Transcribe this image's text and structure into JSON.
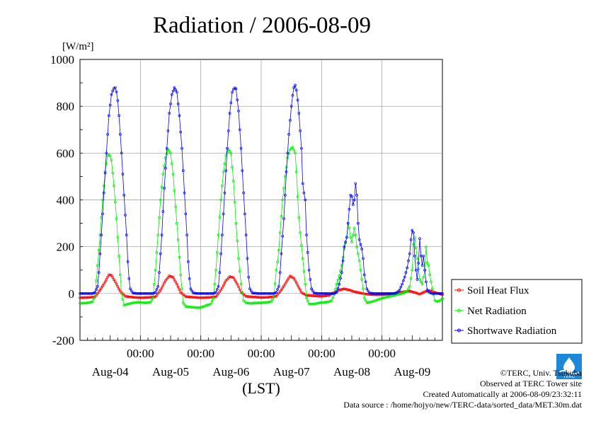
{
  "chart_data": {
    "type": "line",
    "title": "Radiation / 2006-08-09",
    "ylabel": "[W/m²]",
    "xlabel": "(LST)",
    "ylim": [
      -200,
      1000
    ],
    "yticks": [
      -200,
      0,
      200,
      400,
      600,
      800,
      1000
    ],
    "xlim_hours": [
      0,
      144
    ],
    "time_ticks": [
      "00:00",
      "00:00",
      "00:00",
      "00:00",
      "00:00"
    ],
    "day_labels": [
      "Aug-04",
      "Aug-05",
      "Aug-06",
      "Aug-07",
      "Aug-08",
      "Aug-09"
    ],
    "grid": true,
    "legend_position": "bottom-right",
    "series": [
      {
        "name": "Soil Heat Flux",
        "color": "#ff0000",
        "points": [
          [
            0,
            -18
          ],
          [
            3,
            -17
          ],
          [
            6,
            -15
          ],
          [
            8,
            15
          ],
          [
            10,
            50
          ],
          [
            11.5,
            80
          ],
          [
            12.5,
            78
          ],
          [
            14,
            50
          ],
          [
            16,
            10
          ],
          [
            18,
            -12
          ],
          [
            21,
            -16
          ],
          [
            24,
            -18
          ],
          [
            27,
            -17
          ],
          [
            30,
            -14
          ],
          [
            32,
            15
          ],
          [
            34,
            55
          ],
          [
            35.5,
            75
          ],
          [
            37,
            70
          ],
          [
            38.5,
            40
          ],
          [
            40,
            5
          ],
          [
            42,
            -13
          ],
          [
            45,
            -16
          ],
          [
            48,
            -18
          ],
          [
            51,
            -17
          ],
          [
            54,
            -14
          ],
          [
            56,
            15
          ],
          [
            58,
            55
          ],
          [
            59.5,
            72
          ],
          [
            61,
            68
          ],
          [
            62.5,
            40
          ],
          [
            64,
            5
          ],
          [
            66,
            -12
          ],
          [
            69,
            -15
          ],
          [
            72,
            -17
          ],
          [
            75,
            -16
          ],
          [
            78,
            -12
          ],
          [
            80,
            15
          ],
          [
            82,
            50
          ],
          [
            83.5,
            75
          ],
          [
            85,
            65
          ],
          [
            86.5,
            35
          ],
          [
            88,
            5
          ],
          [
            90,
            -8
          ],
          [
            93,
            -10
          ],
          [
            96,
            -12
          ],
          [
            99,
            -8
          ],
          [
            101,
            5
          ],
          [
            103,
            15
          ],
          [
            105,
            20
          ],
          [
            107,
            15
          ],
          [
            109,
            8
          ],
          [
            111,
            3
          ],
          [
            114,
            -3
          ],
          [
            117,
            -5
          ],
          [
            120,
            -5
          ],
          [
            123,
            -2
          ],
          [
            126,
            2
          ],
          [
            129,
            8
          ],
          [
            131,
            10
          ],
          [
            133,
            5
          ],
          [
            135,
            -3
          ],
          [
            137,
            8
          ],
          [
            139,
            12
          ],
          [
            141,
            5
          ],
          [
            144,
            -5
          ]
        ]
      },
      {
        "name": "Net Radiation",
        "color": "#00ee00",
        "points": [
          [
            0,
            -42
          ],
          [
            3,
            -40
          ],
          [
            5,
            -35
          ],
          [
            6,
            -10
          ],
          [
            7,
            120
          ],
          [
            8,
            250
          ],
          [
            9,
            400
          ],
          [
            10,
            520
          ],
          [
            11,
            590
          ],
          [
            11.8,
            595
          ],
          [
            12.5,
            570
          ],
          [
            13.5,
            460
          ],
          [
            14.5,
            320
          ],
          [
            15.5,
            160
          ],
          [
            16.5,
            0
          ],
          [
            17.5,
            -50
          ],
          [
            19,
            -45
          ],
          [
            21,
            -40
          ],
          [
            23,
            -37
          ],
          [
            24,
            -38
          ],
          [
            26,
            -40
          ],
          [
            28,
            -38
          ],
          [
            29,
            -20
          ],
          [
            30,
            100
          ],
          [
            31,
            250
          ],
          [
            32,
            400
          ],
          [
            33,
            510
          ],
          [
            34,
            580
          ],
          [
            35,
            615
          ],
          [
            36,
            600
          ],
          [
            37,
            510
          ],
          [
            38,
            370
          ],
          [
            39,
            230
          ],
          [
            40,
            80
          ],
          [
            41,
            -40
          ],
          [
            42,
            -55
          ],
          [
            44,
            -58
          ],
          [
            46,
            -60
          ],
          [
            48,
            -60
          ],
          [
            50,
            -52
          ],
          [
            52,
            -45
          ],
          [
            53,
            -20
          ],
          [
            54,
            100
          ],
          [
            55,
            250
          ],
          [
            56,
            400
          ],
          [
            57,
            520
          ],
          [
            58,
            590
          ],
          [
            59,
            615
          ],
          [
            60,
            600
          ],
          [
            61,
            480
          ],
          [
            62,
            300
          ],
          [
            63,
            150
          ],
          [
            64,
            40
          ],
          [
            65,
            -30
          ],
          [
            66,
            -40
          ],
          [
            68,
            -42
          ],
          [
            70,
            -40
          ],
          [
            72,
            -40
          ],
          [
            74,
            -38
          ],
          [
            76,
            -35
          ],
          [
            77,
            -15
          ],
          [
            78,
            100
          ],
          [
            78.8,
            155
          ],
          [
            79.5,
            260
          ],
          [
            80.5,
            400
          ],
          [
            81.5,
            500
          ],
          [
            82.5,
            580
          ],
          [
            83.5,
            615
          ],
          [
            84.5,
            625
          ],
          [
            85.5,
            600
          ],
          [
            86,
            520
          ],
          [
            86.8,
            350
          ],
          [
            87.5,
            260
          ],
          [
            88.5,
            150
          ],
          [
            89.5,
            40
          ],
          [
            90,
            -20
          ],
          [
            91,
            -45
          ],
          [
            93,
            -45
          ],
          [
            95,
            -40
          ],
          [
            97,
            -38
          ],
          [
            99,
            -35
          ],
          [
            100,
            -30
          ],
          [
            101,
            -5
          ],
          [
            102,
            40
          ],
          [
            103,
            75
          ],
          [
            104,
            120
          ],
          [
            105,
            190
          ],
          [
            106,
            240
          ],
          [
            106.5,
            300
          ],
          [
            107,
            280
          ],
          [
            107.5,
            240
          ],
          [
            108,
            220
          ],
          [
            109,
            280
          ],
          [
            109.5,
            250
          ],
          [
            110,
            200
          ],
          [
            111,
            140
          ],
          [
            112,
            60
          ],
          [
            113,
            -20
          ],
          [
            114,
            -40
          ],
          [
            116,
            -35
          ],
          [
            118,
            -28
          ],
          [
            120,
            -20
          ],
          [
            122,
            -15
          ],
          [
            124,
            -10
          ],
          [
            126,
            -5
          ],
          [
            128,
            0
          ],
          [
            130,
            10
          ],
          [
            131,
            30
          ],
          [
            132,
            100
          ],
          [
            132.5,
            210
          ],
          [
            133,
            240
          ],
          [
            134,
            150
          ],
          [
            135,
            60
          ],
          [
            136,
            40
          ],
          [
            137,
            100
          ],
          [
            137.5,
            200
          ],
          [
            138,
            130
          ],
          [
            138.5,
            120
          ],
          [
            139,
            80
          ],
          [
            140,
            20
          ],
          [
            141,
            -30
          ],
          [
            142,
            -35
          ],
          [
            143,
            -30
          ],
          [
            144,
            -22
          ]
        ]
      },
      {
        "name": "Shortwave Radiation",
        "color": "#0000ff",
        "points": [
          [
            0,
            0
          ],
          [
            5,
            0
          ],
          [
            6,
            5
          ],
          [
            7,
            30
          ],
          [
            7.5,
            90
          ],
          [
            8.5,
            250
          ],
          [
            9.5,
            430
          ],
          [
            10.5,
            600
          ],
          [
            11.5,
            760
          ],
          [
            12.5,
            850
          ],
          [
            13.3,
            875
          ],
          [
            14,
            880
          ],
          [
            14.8,
            850
          ],
          [
            15.5,
            760
          ],
          [
            16.5,
            600
          ],
          [
            17.5,
            420
          ],
          [
            18.5,
            250
          ],
          [
            19.2,
            90
          ],
          [
            20,
            20
          ],
          [
            21,
            2
          ],
          [
            23,
            0
          ],
          [
            29,
            0
          ],
          [
            30,
            5
          ],
          [
            31,
            30
          ],
          [
            31.5,
            90
          ],
          [
            32.5,
            250
          ],
          [
            33.5,
            450
          ],
          [
            34.5,
            620
          ],
          [
            35.5,
            770
          ],
          [
            36.5,
            850
          ],
          [
            37.5,
            880
          ],
          [
            38.5,
            860
          ],
          [
            39.5,
            760
          ],
          [
            40.5,
            620
          ],
          [
            41.5,
            430
          ],
          [
            42.5,
            250
          ],
          [
            43.2,
            90
          ],
          [
            44,
            20
          ],
          [
            45,
            2
          ],
          [
            47,
            0
          ],
          [
            53,
            0
          ],
          [
            54,
            5
          ],
          [
            55,
            30
          ],
          [
            55.5,
            90
          ],
          [
            56.5,
            250
          ],
          [
            57.5,
            430
          ],
          [
            58.5,
            620
          ],
          [
            59.5,
            770
          ],
          [
            60.5,
            860
          ],
          [
            61.3,
            880
          ],
          [
            62,
            875
          ],
          [
            63,
            780
          ],
          [
            64,
            620
          ],
          [
            65,
            430
          ],
          [
            66,
            250
          ],
          [
            66.8,
            90
          ],
          [
            67.5,
            20
          ],
          [
            68.5,
            2
          ],
          [
            71,
            0
          ],
          [
            77,
            0
          ],
          [
            78,
            5
          ],
          [
            79,
            30
          ],
          [
            79.5,
            90
          ],
          [
            80,
            170
          ],
          [
            81,
            320
          ],
          [
            82,
            520
          ],
          [
            83,
            680
          ],
          [
            84,
            800
          ],
          [
            84.8,
            875
          ],
          [
            85.5,
            890
          ],
          [
            86.2,
            860
          ],
          [
            87,
            770
          ],
          [
            88,
            620
          ],
          [
            88.5,
            470
          ],
          [
            89,
            430
          ],
          [
            89.5,
            400
          ],
          [
            90,
            250
          ],
          [
            91,
            100
          ],
          [
            92,
            20
          ],
          [
            93,
            2
          ],
          [
            95,
            0
          ],
          [
            101,
            0
          ],
          [
            102,
            5
          ],
          [
            103,
            40
          ],
          [
            104,
            90
          ],
          [
            104.5,
            140
          ],
          [
            105,
            200
          ],
          [
            106,
            240
          ],
          [
            106.5,
            300
          ],
          [
            107,
            360
          ],
          [
            107.5,
            420
          ],
          [
            108,
            415
          ],
          [
            108.5,
            380
          ],
          [
            109,
            400
          ],
          [
            109.5,
            470
          ],
          [
            110,
            420
          ],
          [
            110.5,
            300
          ],
          [
            111,
            230
          ],
          [
            112,
            190
          ],
          [
            112.5,
            150
          ],
          [
            113,
            80
          ],
          [
            114,
            20
          ],
          [
            115,
            2
          ],
          [
            117,
            0
          ],
          [
            125,
            0
          ],
          [
            126,
            5
          ],
          [
            127,
            15
          ],
          [
            128,
            40
          ],
          [
            129,
            70
          ],
          [
            130,
            110
          ],
          [
            131,
            170
          ],
          [
            131.5,
            230
          ],
          [
            132,
            270
          ],
          [
            132.5,
            260
          ],
          [
            133,
            160
          ],
          [
            133.5,
            100
          ],
          [
            134,
            60
          ],
          [
            134.5,
            130
          ],
          [
            135,
            235
          ],
          [
            135.5,
            160
          ],
          [
            136,
            120
          ],
          [
            136.5,
            160
          ],
          [
            137,
            100
          ],
          [
            137.5,
            50
          ],
          [
            138,
            15
          ],
          [
            139,
            3
          ],
          [
            140,
            0
          ],
          [
            144,
            0
          ]
        ]
      }
    ]
  },
  "credits": {
    "copyright": "©TERC, Univ. Tsukuba",
    "site": "Observed at TERC Tower site",
    "created": "Created Automatically at 2006-08-09/23:32:11",
    "source": "Data source : /home/hojyo/new/TERC-data/sorted_data/MET.30m.dat"
  },
  "logo_text": "TERC"
}
